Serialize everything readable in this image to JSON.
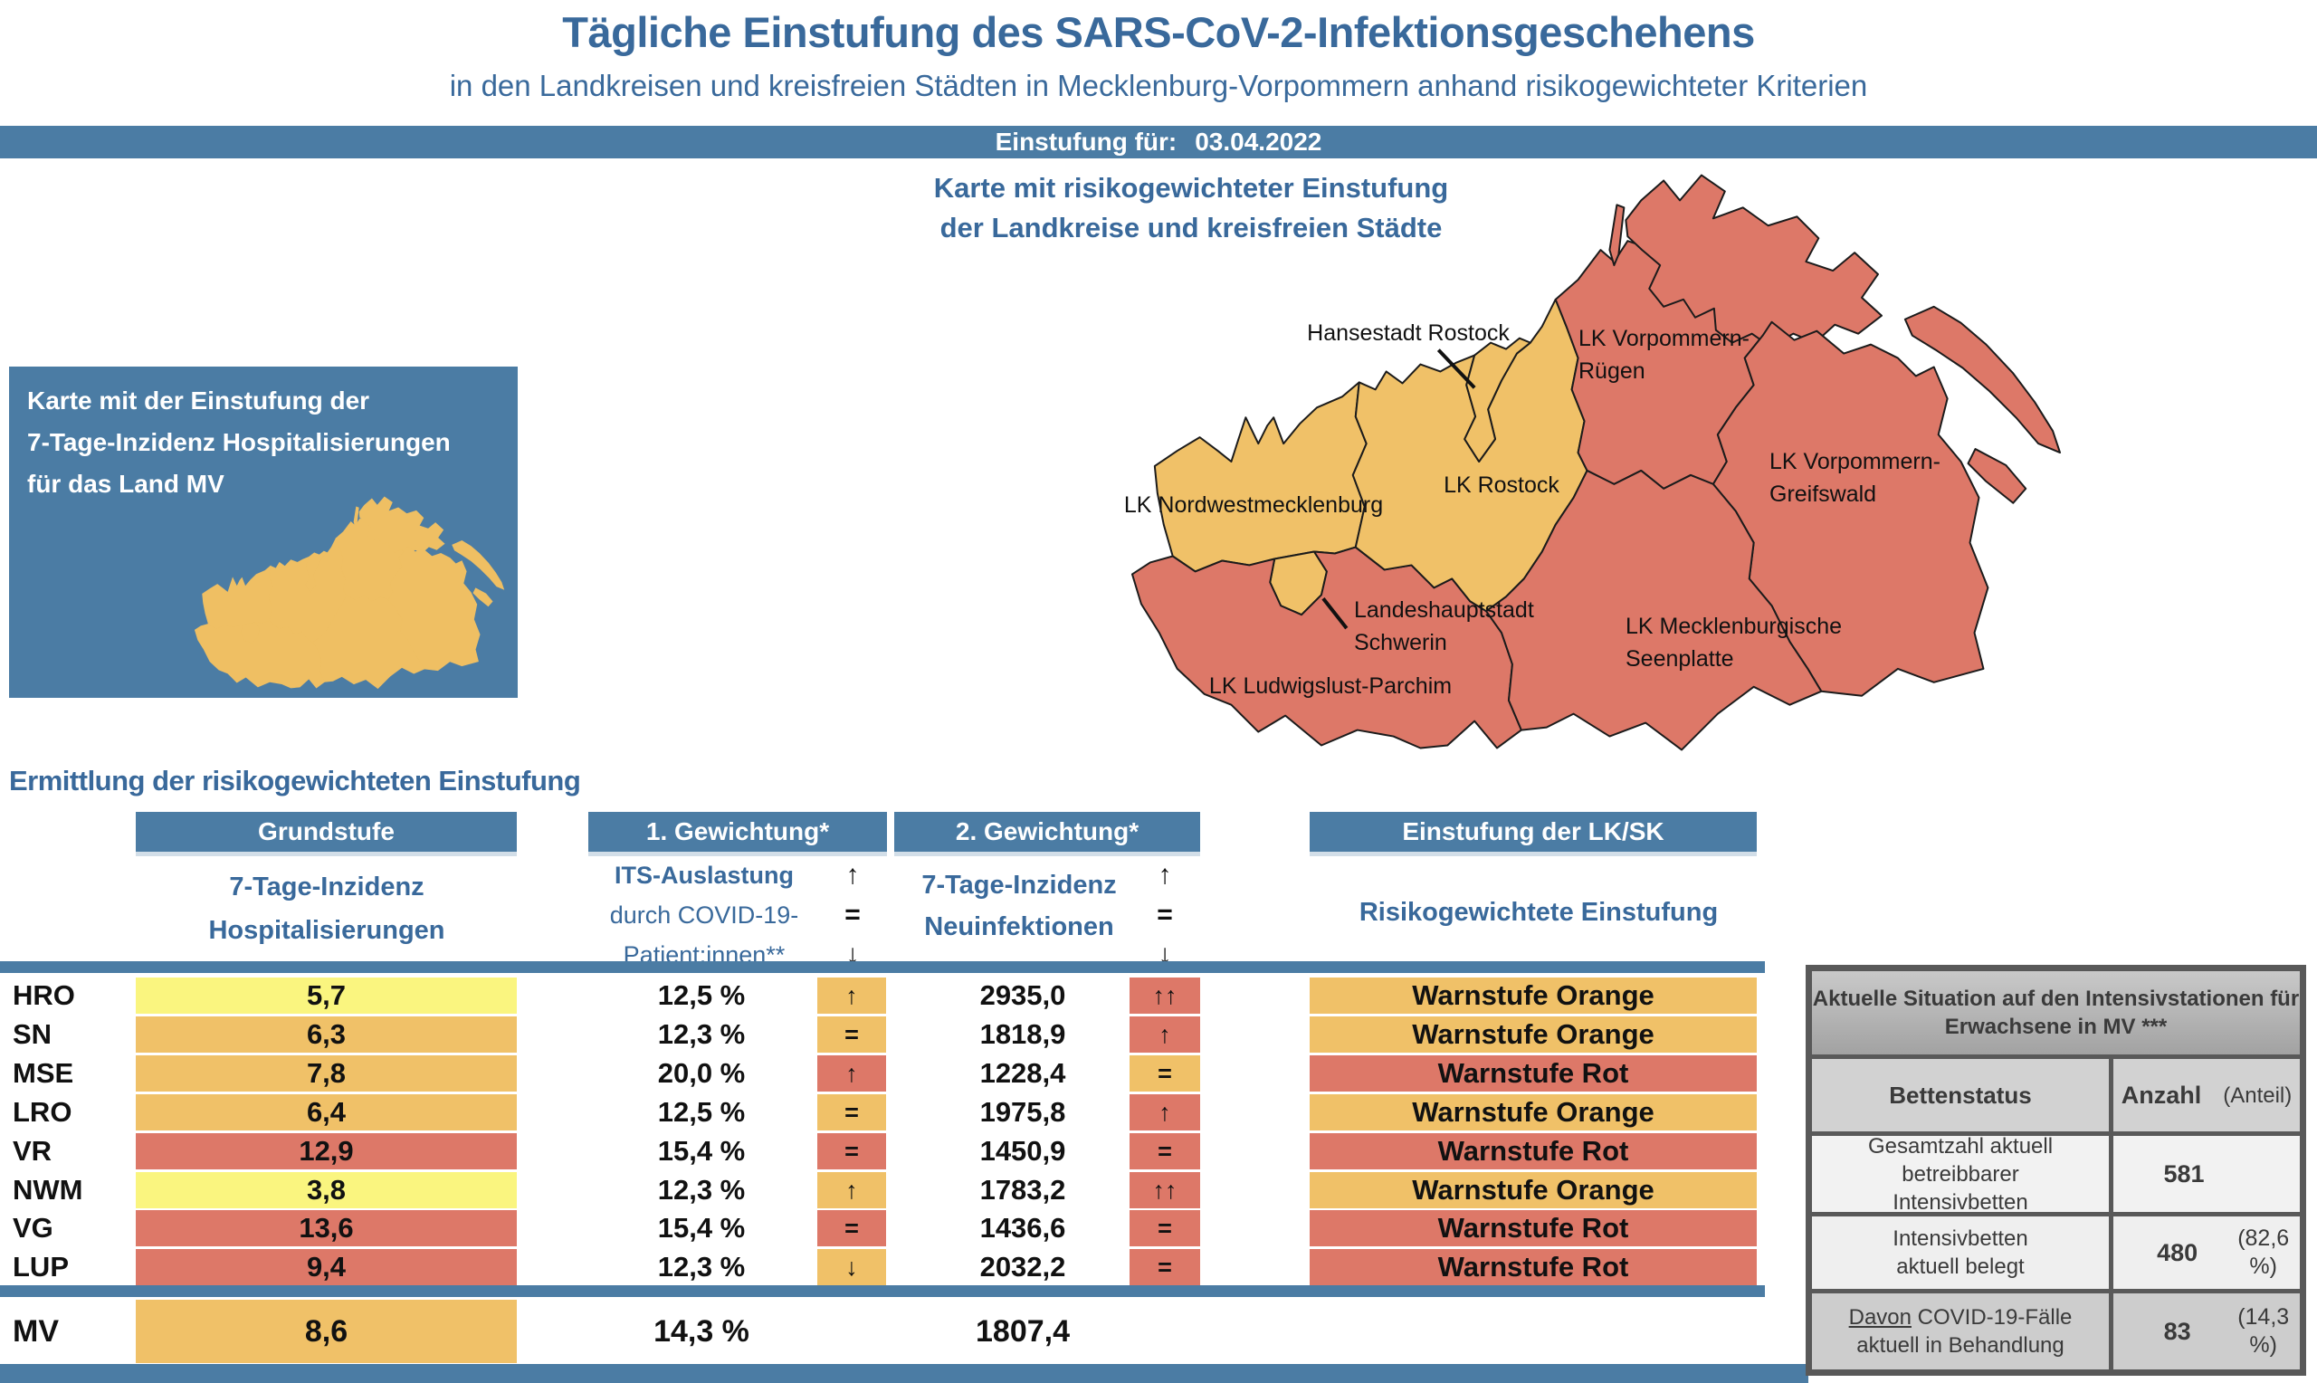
{
  "header": {
    "title": "Tägliche Einstufung des SARS-CoV-2-Infektionsgeschehens",
    "subtitle": "in den Landkreisen und kreisfreien Städten in Mecklenburg-Vorpommern anhand risikogewichteter Kriterien",
    "date_label": "Einstufung für:",
    "date_value": "03.04.2022"
  },
  "left_map_card": {
    "line1": "Karte mit der Einstufung der",
    "line2": "7-Tage-Inzidenz Hospitalisierungen",
    "line3": "für das Land MV"
  },
  "map": {
    "title_line1": "Karte mit risikogewichteter Einstufung",
    "title_line2": "der Landkreise und kreisfreien Städte",
    "regions": [
      {
        "id": "lk-nordwestmecklenburg",
        "label_lines": [
          "LK Nordwestmecklenburg"
        ],
        "level": "orange"
      },
      {
        "id": "landeshauptstadt-schwerin",
        "label_lines": [
          "Landeshauptstadt",
          "Schwerin"
        ],
        "level": "orange"
      },
      {
        "id": "lk-ludwigslust-parchim",
        "label_lines": [
          "LK Ludwigslust-Parchim"
        ],
        "level": "red"
      },
      {
        "id": "lk-rostock",
        "label_lines": [
          "LK Rostock"
        ],
        "level": "orange"
      },
      {
        "id": "hansestadt-rostock",
        "label_lines": [
          "Hansestadt Rostock"
        ],
        "level": "orange"
      },
      {
        "id": "lk-vorpommern-ruegen",
        "label_lines": [
          "LK Vorpommern-",
          "Rügen"
        ],
        "level": "red"
      },
      {
        "id": "lk-vorpommern-greifswald",
        "label_lines": [
          "LK Vorpommern-",
          "Greifswald"
        ],
        "level": "red"
      },
      {
        "id": "lk-mecklenburgische-seenplatte",
        "label_lines": [
          "LK Mecklenburgische",
          "Seenplatte"
        ],
        "level": "red"
      }
    ]
  },
  "section_heading": "Ermittlung der risikogewichteten Einstufung",
  "table": {
    "group_headers": {
      "g1": "Grundstufe",
      "g2": "1. Gewichtung*",
      "g3": "2. Gewichtung*",
      "g4": "Einstufung der LK/SK"
    },
    "col1_line1": "7-Tage-Inzidenz",
    "col1_line2": "Hospitalisierungen",
    "col2_line1": "ITS-Auslastung",
    "col2_line2": "durch COVID-19-",
    "col2_line3": "Patient:innen**",
    "col3_line1": "7-Tage-Inzidenz",
    "col3_line2": "Neuinfektionen",
    "col4": "Risikogewichtete Einstufung",
    "legend_arrows": [
      "↑",
      "=",
      "↓"
    ],
    "rows": [
      {
        "code": "HRO",
        "hosp": "5,7",
        "hosp_level": "yellow",
        "icu": "12,5 %",
        "icu_trend": "↑",
        "icu_level": "orange",
        "inc": "2935,0",
        "inc_trend": "↑↑",
        "inc_level": "red",
        "rating": "Warnstufe Orange",
        "rating_level": "orange"
      },
      {
        "code": "SN",
        "hosp": "6,3",
        "hosp_level": "orange",
        "icu": "12,3 %",
        "icu_trend": "=",
        "icu_level": "orange",
        "inc": "1818,9",
        "inc_trend": "↑",
        "inc_level": "red",
        "rating": "Warnstufe Orange",
        "rating_level": "orange"
      },
      {
        "code": "MSE",
        "hosp": "7,8",
        "hosp_level": "orange",
        "icu": "20,0 %",
        "icu_trend": "↑",
        "icu_level": "red",
        "inc": "1228,4",
        "inc_trend": "=",
        "inc_level": "orange",
        "rating": "Warnstufe Rot",
        "rating_level": "red"
      },
      {
        "code": "LRO",
        "hosp": "6,4",
        "hosp_level": "orange",
        "icu": "12,5 %",
        "icu_trend": "=",
        "icu_level": "orange",
        "inc": "1975,8",
        "inc_trend": "↑",
        "inc_level": "red",
        "rating": "Warnstufe Orange",
        "rating_level": "orange"
      },
      {
        "code": "VR",
        "hosp": "12,9",
        "hosp_level": "red",
        "icu": "15,4 %",
        "icu_trend": "=",
        "icu_level": "red",
        "inc": "1450,9",
        "inc_trend": "=",
        "inc_level": "red",
        "rating": "Warnstufe Rot",
        "rating_level": "red"
      },
      {
        "code": "NWM",
        "hosp": "3,8",
        "hosp_level": "yellow",
        "icu": "12,3 %",
        "icu_trend": "↑",
        "icu_level": "orange",
        "inc": "1783,2",
        "inc_trend": "↑↑",
        "inc_level": "red",
        "rating": "Warnstufe Orange",
        "rating_level": "orange"
      },
      {
        "code": "VG",
        "hosp": "13,6",
        "hosp_level": "red",
        "icu": "15,4 %",
        "icu_trend": "=",
        "icu_level": "red",
        "inc": "1436,6",
        "inc_trend": "=",
        "inc_level": "red",
        "rating": "Warnstufe Rot",
        "rating_level": "red"
      },
      {
        "code": "LUP",
        "hosp": "9,4",
        "hosp_level": "red",
        "icu": "12,3 %",
        "icu_trend": "↓",
        "icu_level": "orange",
        "inc": "2032,2",
        "inc_trend": "=",
        "inc_level": "red",
        "rating": "Warnstufe Rot",
        "rating_level": "red"
      }
    ],
    "summary_row": {
      "code": "MV",
      "hosp": "8,6",
      "hosp_level": "orange",
      "icu": "14,3 %",
      "inc": "1807,4"
    }
  },
  "icu_panel": {
    "title_line1": "Aktuelle Situation auf den Intensivstationen für",
    "title_line2": "Erwachsene in MV ***",
    "col_label": "Bettenstatus",
    "col_count": "Anzahl",
    "col_share": "(Anteil)",
    "row1": {
      "label_line1": "Gesamtzahl aktuell betreibbarer",
      "label_line2": "Intensivbetten",
      "count": "581",
      "share": ""
    },
    "row2": {
      "label_line1": "Intensivbetten",
      "label_line2": "aktuell belegt",
      "count": "480",
      "share": "(82,6 %)"
    },
    "row3": {
      "label_prefix": "Davon",
      "label_rest": " COVID-19-Fälle",
      "label_line2": "aktuell in Behandlung",
      "count": "83",
      "share": "(14,3 %)"
    }
  },
  "colors": {
    "accent_blue": "#4b7ca4",
    "heading_blue": "#39699b",
    "level_yellow": "#faf57f",
    "level_orange": "#f0c168",
    "level_red": "#dd7868"
  }
}
